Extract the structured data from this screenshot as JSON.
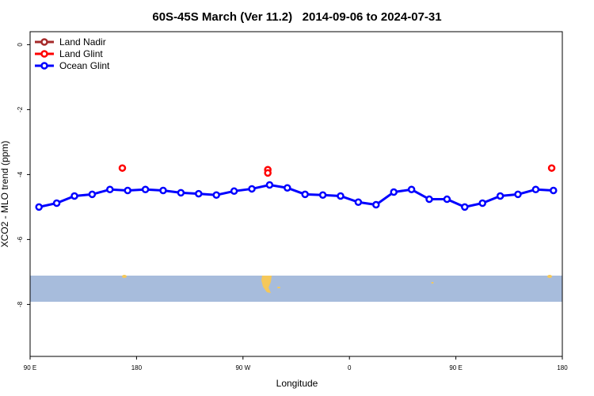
{
  "chart_data": {
    "type": "line",
    "title": "60S-45S March (Ver 11.2)   2014-09-06 to 2024-07-31",
    "x_label": "Longitude",
    "y_label": "XCO2 - MLO trend (ppm)",
    "xlim": [
      90,
      540
    ],
    "xticks": [
      {
        "value": 90,
        "label": "90 E"
      },
      {
        "value": 180,
        "label": "180"
      },
      {
        "value": 270,
        "label": "90 W"
      },
      {
        "value": 360,
        "label": "0"
      },
      {
        "value": 450,
        "label": "90 E"
      },
      {
        "value": 540,
        "label": "180"
      }
    ],
    "ylim": [
      -9.6,
      0.4
    ],
    "yticks": [
      0,
      -2,
      -4,
      -6,
      -8
    ],
    "legend": "top-left",
    "series": [
      {
        "name": "Land Nadir",
        "color": "#a52a2a",
        "line": true,
        "x": [],
        "values": []
      },
      {
        "name": "Land Glint",
        "color": "#ff0000",
        "line": false,
        "x": [
          168,
          291,
          291,
          531
        ],
        "values": [
          -3.8,
          -3.85,
          -3.95,
          -3.8
        ]
      },
      {
        "name": "Ocean Glint",
        "color": "#0000ff",
        "line": true,
        "x": [
          97.5,
          112.5,
          127.5,
          142.5,
          157.5,
          172.5,
          187.5,
          202.5,
          217.5,
          232.5,
          247.5,
          262.5,
          277.5,
          292.5,
          307.5,
          322.5,
          337.5,
          352.5,
          367.5,
          382.5,
          397.5,
          412.5,
          427.5,
          442.5,
          457.5,
          472.5,
          487.5,
          502.5,
          517.5,
          532.5
        ],
        "values": [
          -5.0,
          -4.88,
          -4.66,
          -4.61,
          -4.46,
          -4.49,
          -4.46,
          -4.49,
          -4.56,
          -4.59,
          -4.63,
          -4.51,
          -4.44,
          -4.32,
          -4.41,
          -4.61,
          -4.63,
          -4.66,
          -4.85,
          -4.93,
          -4.54,
          -4.46,
          -4.76,
          -4.76,
          -5.0,
          -4.88,
          -4.66,
          -4.61,
          -4.46,
          -4.49
        ]
      }
    ]
  }
}
